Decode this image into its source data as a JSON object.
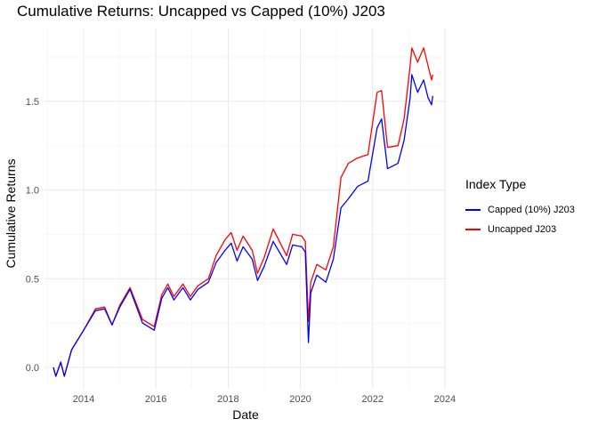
{
  "chart_data": {
    "type": "line",
    "title": "Cumulative Returns: Uncapped vs Capped (10%) J203",
    "xlabel": "Date",
    "ylabel": "Cumulative Returns",
    "xlim": [
      "2012-12-01",
      "2024-01-20"
    ],
    "ylim": [
      -0.12,
      1.91
    ],
    "x_ticks": [
      {
        "label": "2014",
        "date": "2014-01-01"
      },
      {
        "label": "2016",
        "date": "2016-01-01"
      },
      {
        "label": "2018",
        "date": "2018-01-01"
      },
      {
        "label": "2020",
        "date": "2020-01-01"
      },
      {
        "label": "2022",
        "date": "2022-01-01"
      },
      {
        "label": "2024",
        "date": "2024-01-01"
      }
    ],
    "y_ticks": [
      {
        "label": "0.0",
        "value": 0.0
      },
      {
        "label": "0.5",
        "value": 0.5
      },
      {
        "label": "1.0",
        "value": 1.0
      },
      {
        "label": "1.5",
        "value": 1.5
      }
    ],
    "grid": true,
    "legend": {
      "title": "Index Type",
      "placement": "right"
    },
    "series": [
      {
        "name": "Capped (10%) J203",
        "color": "#0000ff",
        "points": [
          [
            "2013-03-01",
            0.0
          ],
          [
            "2013-03-25",
            -0.05
          ],
          [
            "2013-05-15",
            0.03
          ],
          [
            "2013-06-20",
            -0.05
          ],
          [
            "2013-09-01",
            0.1
          ],
          [
            "2014-01-01",
            0.21
          ],
          [
            "2014-05-01",
            0.32
          ],
          [
            "2014-08-01",
            0.33
          ],
          [
            "2014-10-15",
            0.24
          ],
          [
            "2015-01-01",
            0.34
          ],
          [
            "2015-04-15",
            0.44
          ],
          [
            "2015-08-20",
            0.25
          ],
          [
            "2015-12-15",
            0.21
          ],
          [
            "2016-03-01",
            0.39
          ],
          [
            "2016-05-01",
            0.45
          ],
          [
            "2016-07-01",
            0.38
          ],
          [
            "2016-10-01",
            0.45
          ],
          [
            "2016-12-15",
            0.38
          ],
          [
            "2017-03-01",
            0.44
          ],
          [
            "2017-06-15",
            0.48
          ],
          [
            "2017-09-01",
            0.59
          ],
          [
            "2017-12-01",
            0.66
          ],
          [
            "2018-02-01",
            0.7
          ],
          [
            "2018-04-01",
            0.6
          ],
          [
            "2018-06-01",
            0.68
          ],
          [
            "2018-09-01",
            0.61
          ],
          [
            "2018-10-25",
            0.49
          ],
          [
            "2019-01-01",
            0.57
          ],
          [
            "2019-04-01",
            0.71
          ],
          [
            "2019-08-15",
            0.58
          ],
          [
            "2019-10-15",
            0.69
          ],
          [
            "2020-01-15",
            0.68
          ],
          [
            "2020-02-20",
            0.65
          ],
          [
            "2020-03-23",
            0.14
          ],
          [
            "2020-04-15",
            0.42
          ],
          [
            "2020-06-15",
            0.52
          ],
          [
            "2020-09-15",
            0.48
          ],
          [
            "2020-11-30",
            0.61
          ],
          [
            "2021-02-15",
            0.9
          ],
          [
            "2021-05-01",
            0.95
          ],
          [
            "2021-08-01",
            1.02
          ],
          [
            "2021-11-15",
            1.05
          ],
          [
            "2022-02-15",
            1.35
          ],
          [
            "2022-04-01",
            1.4
          ],
          [
            "2022-06-01",
            1.12
          ],
          [
            "2022-09-15",
            1.15
          ],
          [
            "2022-11-15",
            1.28
          ],
          [
            "2023-01-15",
            1.52
          ],
          [
            "2023-02-01",
            1.65
          ],
          [
            "2023-04-01",
            1.55
          ],
          [
            "2023-06-01",
            1.62
          ],
          [
            "2023-07-15",
            1.52
          ],
          [
            "2023-08-20",
            1.48
          ],
          [
            "2023-09-01",
            1.53
          ]
        ]
      },
      {
        "name": "Uncapped J203",
        "color": "#ff0000",
        "points": [
          [
            "2013-03-01",
            0.0
          ],
          [
            "2013-03-25",
            -0.05
          ],
          [
            "2013-05-15",
            0.03
          ],
          [
            "2013-06-20",
            -0.05
          ],
          [
            "2013-09-01",
            0.1
          ],
          [
            "2014-01-01",
            0.21
          ],
          [
            "2014-05-01",
            0.33
          ],
          [
            "2014-08-01",
            0.34
          ],
          [
            "2014-10-15",
            0.24
          ],
          [
            "2015-01-01",
            0.35
          ],
          [
            "2015-04-15",
            0.45
          ],
          [
            "2015-08-20",
            0.27
          ],
          [
            "2015-12-15",
            0.23
          ],
          [
            "2016-03-01",
            0.41
          ],
          [
            "2016-05-01",
            0.47
          ],
          [
            "2016-07-01",
            0.4
          ],
          [
            "2016-10-01",
            0.47
          ],
          [
            "2016-12-15",
            0.4
          ],
          [
            "2017-03-01",
            0.46
          ],
          [
            "2017-06-15",
            0.5
          ],
          [
            "2017-09-01",
            0.63
          ],
          [
            "2017-12-01",
            0.72
          ],
          [
            "2018-02-01",
            0.76
          ],
          [
            "2018-04-01",
            0.66
          ],
          [
            "2018-06-01",
            0.74
          ],
          [
            "2018-09-01",
            0.66
          ],
          [
            "2018-10-25",
            0.53
          ],
          [
            "2019-01-01",
            0.62
          ],
          [
            "2019-04-01",
            0.78
          ],
          [
            "2019-08-15",
            0.63
          ],
          [
            "2019-10-15",
            0.75
          ],
          [
            "2020-01-15",
            0.74
          ],
          [
            "2020-02-20",
            0.71
          ],
          [
            "2020-03-23",
            0.26
          ],
          [
            "2020-04-15",
            0.48
          ],
          [
            "2020-06-15",
            0.58
          ],
          [
            "2020-09-15",
            0.55
          ],
          [
            "2020-11-30",
            0.68
          ],
          [
            "2021-02-15",
            1.07
          ],
          [
            "2021-05-01",
            1.15
          ],
          [
            "2021-08-01",
            1.18
          ],
          [
            "2021-11-15",
            1.2
          ],
          [
            "2022-02-15",
            1.55
          ],
          [
            "2022-04-01",
            1.56
          ],
          [
            "2022-06-01",
            1.24
          ],
          [
            "2022-09-15",
            1.25
          ],
          [
            "2022-11-15",
            1.4
          ],
          [
            "2023-01-15",
            1.7
          ],
          [
            "2023-02-01",
            1.8
          ],
          [
            "2023-04-01",
            1.72
          ],
          [
            "2023-06-01",
            1.8
          ],
          [
            "2023-07-15",
            1.7
          ],
          [
            "2023-08-20",
            1.62
          ],
          [
            "2023-09-01",
            1.65
          ]
        ]
      }
    ]
  }
}
